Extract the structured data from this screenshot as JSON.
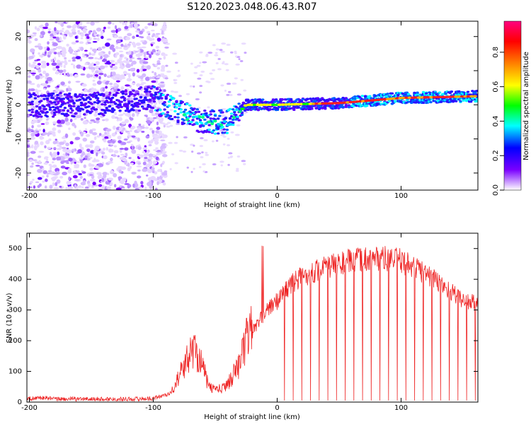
{
  "title": "S120.2023.048.06.43.R07",
  "chart_data": [
    {
      "type": "heatmap",
      "xlabel": "Height of straight line (km)",
      "ylabel": "Frequency (Hz)",
      "xlim": [
        -202,
        162
      ],
      "ylim": [
        -25,
        24.5
      ],
      "xticks": [
        -200,
        -100,
        0,
        100
      ],
      "yticks": [
        -20,
        -10,
        0,
        10,
        20
      ],
      "colorbar": {
        "label": "Normalized spectral amplitude",
        "ticks": [
          0.0,
          0.2,
          0.4,
          0.6,
          0.8
        ],
        "tick_labels": [
          "0.0",
          "0.2",
          "0.4",
          "0.6",
          "0.8"
        ],
        "range": [
          0,
          0.98
        ],
        "colors": [
          "#ffffff",
          "#7a00ff",
          "#0000ff",
          "#00ffff",
          "#00ff00",
          "#ffff00",
          "#ff8000",
          "#ff0000",
          "#ff0080"
        ]
      },
      "ridge": {
        "x": [
          -200,
          -150,
          -100,
          -80,
          -60,
          -40,
          -30,
          -25,
          0,
          50,
          100,
          160
        ],
        "frequency": [
          0,
          0,
          2,
          -2,
          -5,
          -5,
          -2,
          0,
          0,
          0.5,
          2,
          2.5
        ]
      }
    },
    {
      "type": "line",
      "series": [
        {
          "color": "#ee2222"
        }
      ],
      "xlabel": "Height of straight line (km)",
      "ylabel": "SNR (10 * v/v)",
      "xlim": [
        -202,
        162
      ],
      "ylim": [
        0,
        550
      ],
      "xticks": [
        -200,
        -100,
        0,
        100
      ],
      "yticks": [
        0,
        100,
        200,
        300,
        400,
        500
      ],
      "envelope": {
        "x": [
          -202,
          -190,
          -180,
          -120,
          -100,
          -85,
          -75,
          -68,
          -62,
          -55,
          -45,
          -38,
          -30,
          -25,
          -20,
          -15,
          -10,
          -5,
          0,
          10,
          20,
          40,
          60,
          80,
          100,
          120,
          140,
          150,
          162
        ],
        "snr": [
          10,
          15,
          10,
          10,
          12,
          30,
          100,
          150,
          120,
          40,
          35,
          60,
          110,
          170,
          230,
          260,
          290,
          310,
          330,
          380,
          410,
          440,
          460,
          470,
          460,
          420,
          360,
          330,
          320
        ]
      },
      "dropout_spacing_km": 7,
      "dropout_start_km": 6
    }
  ]
}
